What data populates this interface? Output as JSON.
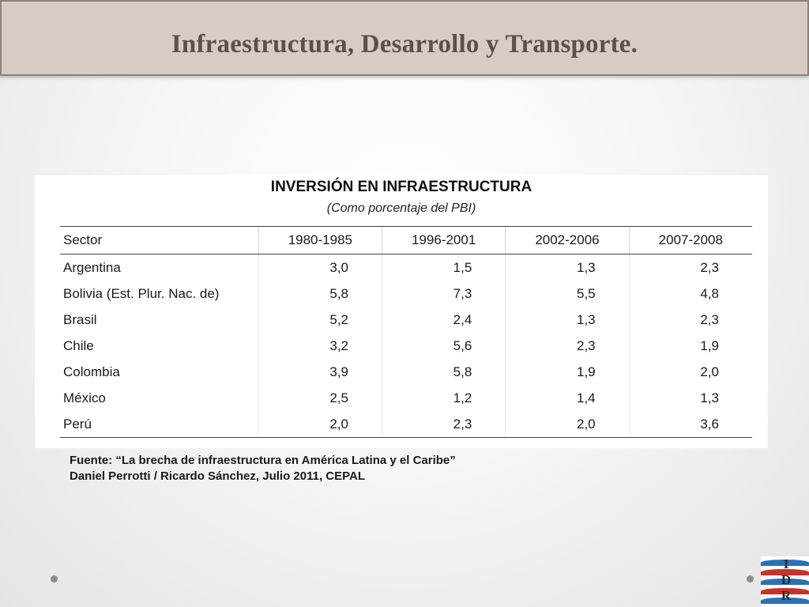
{
  "header": {
    "title": "Infraestructura, Desarrollo y Transporte."
  },
  "table": {
    "title": "INVERSIÓN EN INFRAESTRUCTURA",
    "subtitle": "(Como porcentaje del PBI)",
    "columns": [
      "Sector",
      "1980-1985",
      "1996-2001",
      "2002-2006",
      "2007-2008"
    ],
    "rows": [
      [
        "Argentina",
        "3,0",
        "1,5",
        "1,3",
        "2,3"
      ],
      [
        "Bolivia (Est. Plur. Nac. de)",
        "5,8",
        "7,3",
        "5,5",
        "4,8"
      ],
      [
        "Brasil",
        "5,2",
        "2,4",
        "1,3",
        "2,3"
      ],
      [
        "Chile",
        "3,2",
        "5,6",
        "2,3",
        "1,9"
      ],
      [
        "Colombia",
        "3,9",
        "5,8",
        "1,9",
        "2,0"
      ],
      [
        "México",
        "2,5",
        "1,2",
        "1,4",
        "1,3"
      ],
      [
        "Perú",
        "2,0",
        "2,3",
        "2,0",
        "3,6"
      ]
    ]
  },
  "source": {
    "line1": "Fuente: “La brecha de infraestructura en América Latina y el Caribe”",
    "line2": "Daniel Perrotti / Ricardo Sánchez, Julio 2011, CEPAL"
  },
  "logo": {
    "letters": [
      "I",
      "D",
      "R"
    ],
    "colors": [
      "#2e6fb5",
      "#c8322b"
    ]
  },
  "colors": {
    "header_bg": "#d5cdc4",
    "header_text": "#5a5148",
    "bullet": "#8e8e84"
  }
}
